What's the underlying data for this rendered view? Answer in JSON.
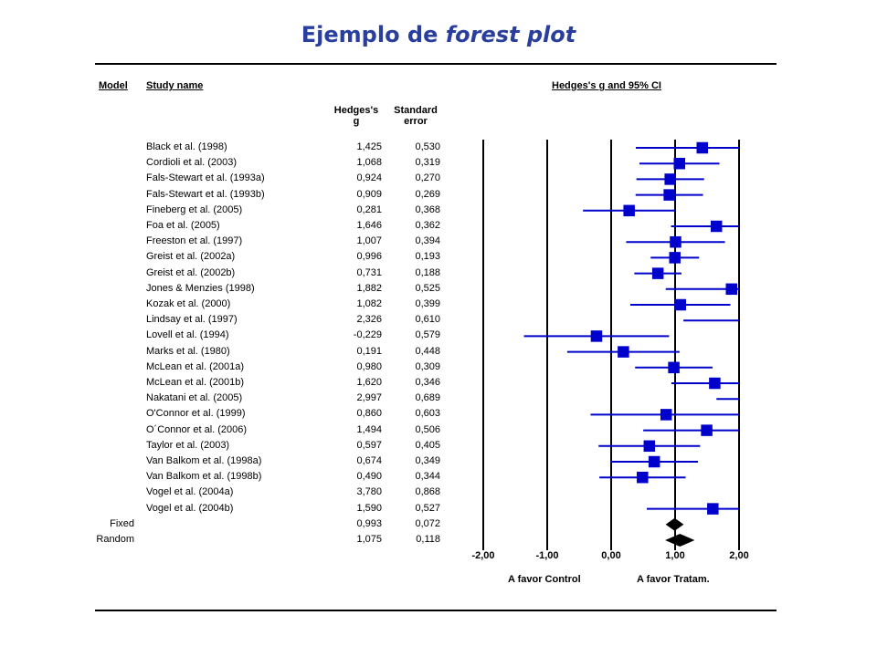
{
  "title": {
    "main": "Ejemplo de ",
    "italic": "forest plot"
  },
  "headers": {
    "model": "Model",
    "study": "Study name",
    "plot": "Hedges's g and 95% CI",
    "g_line1": "Hedges's",
    "g_line2": "g",
    "se_line1": "Standard",
    "se_line2": "error"
  },
  "footer_labels": {
    "left": "A favor Control",
    "right": "A favor Tratam."
  },
  "colors": {
    "marker": "#0000cc",
    "title": "#2a3f9d"
  },
  "chart_data": {
    "type": "forest",
    "xlim": [
      -2,
      2
    ],
    "x_ticks": [
      "-2,00",
      "-1,00",
      "0,00",
      "1,00",
      "2,00"
    ],
    "x_tick_values": [
      -2,
      -1,
      0,
      1,
      2
    ],
    "studies": [
      {
        "name": "Black et al. (1998)",
        "g": 1.425,
        "g_text": "1,425",
        "se": 0.53,
        "se_text": "0,530"
      },
      {
        "name": "Cordioli et al. (2003)",
        "g": 1.068,
        "g_text": "1,068",
        "se": 0.319,
        "se_text": "0,319"
      },
      {
        "name": "Fals-Stewart et al. (1993a)",
        "g": 0.924,
        "g_text": "0,924",
        "se": 0.27,
        "se_text": "0,270"
      },
      {
        "name": "Fals-Stewart et al. (1993b)",
        "g": 0.909,
        "g_text": "0,909",
        "se": 0.269,
        "se_text": "0,269"
      },
      {
        "name": "Fineberg et al. (2005)",
        "g": 0.281,
        "g_text": "0,281",
        "se": 0.368,
        "se_text": "0,368"
      },
      {
        "name": "Foa et al. (2005)",
        "g": 1.646,
        "g_text": "1,646",
        "se": 0.362,
        "se_text": "0,362"
      },
      {
        "name": "Freeston et al. (1997)",
        "g": 1.007,
        "g_text": "1,007",
        "se": 0.394,
        "se_text": "0,394"
      },
      {
        "name": "Greist et al. (2002a)",
        "g": 0.996,
        "g_text": "0,996",
        "se": 0.193,
        "se_text": "0,193"
      },
      {
        "name": "Greist et al. (2002b)",
        "g": 0.731,
        "g_text": "0,731",
        "se": 0.188,
        "se_text": "0,188"
      },
      {
        "name": "Jones & Menzies (1998)",
        "g": 1.882,
        "g_text": "1,882",
        "se": 0.525,
        "se_text": "0,525"
      },
      {
        "name": "Kozak et al. (2000)",
        "g": 1.082,
        "g_text": "1,082",
        "se": 0.399,
        "se_text": "0,399"
      },
      {
        "name": "Lindsay et al. (1997)",
        "g": 2.326,
        "g_text": "2,326",
        "se": 0.61,
        "se_text": "0,610"
      },
      {
        "name": "Lovell et al. (1994)",
        "g": -0.229,
        "g_text": "-0,229",
        "se": 0.579,
        "se_text": "0,579"
      },
      {
        "name": "Marks et al. (1980)",
        "g": 0.191,
        "g_text": "0,191",
        "se": 0.448,
        "se_text": "0,448"
      },
      {
        "name": "McLean et al. (2001a)",
        "g": 0.98,
        "g_text": "0,980",
        "se": 0.309,
        "se_text": "0,309"
      },
      {
        "name": "McLean et al. (2001b)",
        "g": 1.62,
        "g_text": "1,620",
        "se": 0.346,
        "se_text": "0,346"
      },
      {
        "name": "Nakatani et al. (2005)",
        "g": 2.997,
        "g_text": "2,997",
        "se": 0.689,
        "se_text": "0,689"
      },
      {
        "name": "O'Connor et al. (1999)",
        "g": 0.86,
        "g_text": "0,860",
        "se": 0.603,
        "se_text": "0,603"
      },
      {
        "name": "O´Connor et al. (2006)",
        "g": 1.494,
        "g_text": "1,494",
        "se": 0.506,
        "se_text": "0,506"
      },
      {
        "name": "Taylor et al. (2003)",
        "g": 0.597,
        "g_text": "0,597",
        "se": 0.405,
        "se_text": "0,405"
      },
      {
        "name": "Van Balkom et al. (1998a)",
        "g": 0.674,
        "g_text": "0,674",
        "se": 0.349,
        "se_text": "0,349"
      },
      {
        "name": "Van Balkom et al. (1998b)",
        "g": 0.49,
        "g_text": "0,490",
        "se": 0.344,
        "se_text": "0,344"
      },
      {
        "name": "Vogel et al. (2004a)",
        "g": 3.78,
        "g_text": "3,780",
        "se": 0.868,
        "se_text": "0,868"
      },
      {
        "name": "Vogel et al. (2004b)",
        "g": 1.59,
        "g_text": "1,590",
        "se": 0.527,
        "se_text": "0,527"
      }
    ],
    "summaries": [
      {
        "model": "Fixed",
        "g": 0.993,
        "g_text": "0,993",
        "se": 0.072,
        "se_text": "0,072"
      },
      {
        "model": "Random",
        "g": 1.075,
        "g_text": "1,075",
        "se": 0.118,
        "se_text": "0,118"
      }
    ]
  }
}
